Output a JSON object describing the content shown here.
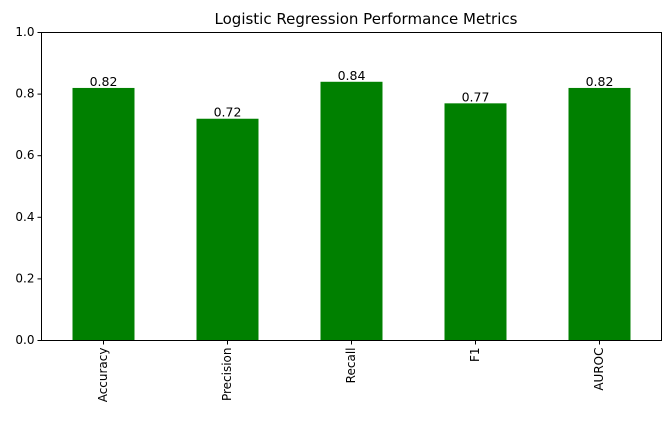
{
  "chart_data": {
    "type": "bar",
    "title": "Logistic Regression Performance Metrics",
    "xlabel": "",
    "ylabel": "",
    "categories": [
      "Accuracy",
      "Precision",
      "Recall",
      "F1",
      "AUROC"
    ],
    "values": [
      0.82,
      0.72,
      0.84,
      0.77,
      0.82
    ],
    "data_labels": [
      "0.82",
      "0.72",
      "0.84",
      "0.77",
      "0.82"
    ],
    "ylim": [
      0,
      1.0
    ],
    "yticks": [
      0.0,
      0.2,
      0.4,
      0.6,
      0.8,
      1.0
    ],
    "ytick_labels": [
      "0.0",
      "0.2",
      "0.4",
      "0.6",
      "0.8",
      "1.0"
    ],
    "bar_color": "#008000",
    "grid": false,
    "legend": "none",
    "xtick_rotation_deg": 90
  }
}
